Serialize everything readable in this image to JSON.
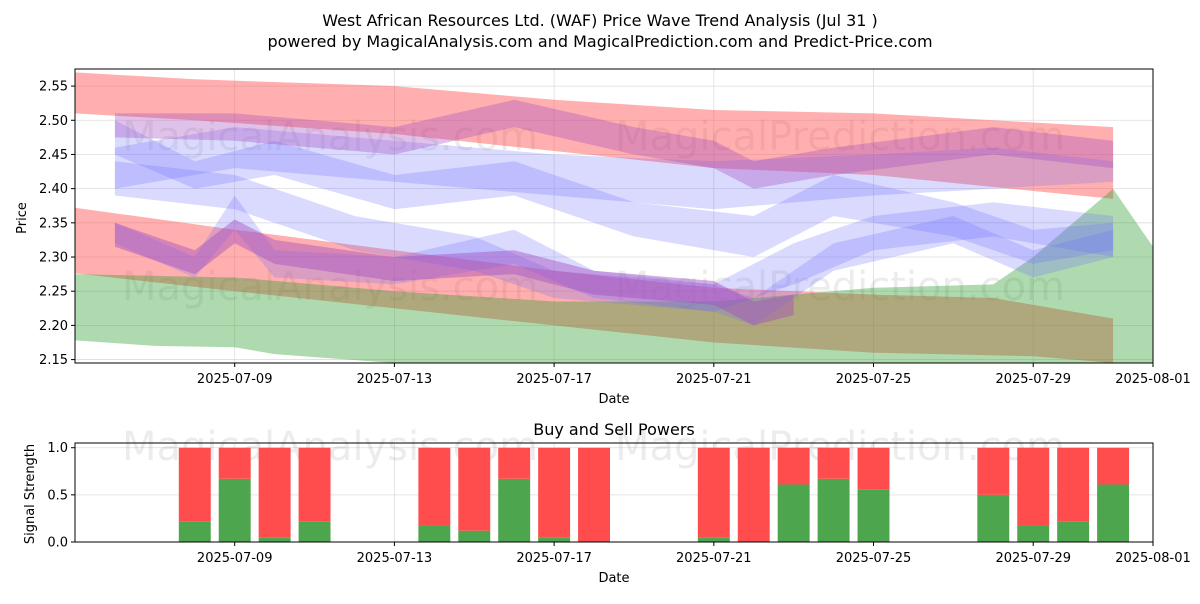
{
  "chart_data": [
    {
      "type": "area",
      "title": "West African Resources Ltd. (WAF) Price Wave Trend Analysis (Jul 31 )",
      "subtitle": "powered by MagicalAnalysis.com and MagicalPrediction.com and Predict-Price.com",
      "xlabel": "Date",
      "ylabel": "Price",
      "xlim": [
        "2025-07-05",
        "2025-08-01"
      ],
      "ylim": [
        2.145,
        2.575
      ],
      "x_ticks": [
        "2025-07-09",
        "2025-07-13",
        "2025-07-17",
        "2025-07-21",
        "2025-07-25",
        "2025-07-29",
        "2025-08-01"
      ],
      "y_ticks": [
        2.15,
        2.2,
        2.25,
        2.3,
        2.35,
        2.4,
        2.45,
        2.5,
        2.55
      ],
      "grid": true,
      "watermarks": [
        "MagicalAnalysis.com",
        "MagicalPrediction.com",
        "MagicalAnalysis.com",
        "MagicalPrediction.com"
      ],
      "colors": {
        "red": "#ff4d4d",
        "green": "#2e9e2e",
        "blue": "#6b6bff",
        "purple": "#a34dbf"
      },
      "bands": [
        {
          "color": "red",
          "opacity": 0.45,
          "upper": [
            [
              "2025-07-05",
              2.57
            ],
            [
              "2025-07-08",
              2.56
            ],
            [
              "2025-07-13",
              2.55
            ],
            [
              "2025-07-17",
              2.53
            ],
            [
              "2025-07-21",
              2.515
            ],
            [
              "2025-07-25",
              2.51
            ],
            [
              "2025-07-31",
              2.49
            ]
          ],
          "lower": [
            [
              "2025-07-05",
              2.51
            ],
            [
              "2025-07-08",
              2.5
            ],
            [
              "2025-07-13",
              2.48
            ],
            [
              "2025-07-17",
              2.455
            ],
            [
              "2025-07-21",
              2.43
            ],
            [
              "2025-07-25",
              2.42
            ],
            [
              "2025-07-31",
              2.385
            ]
          ]
        },
        {
          "color": "red",
          "opacity": 0.45,
          "upper": [
            [
              "2025-07-05",
              2.372
            ],
            [
              "2025-07-09",
              2.34
            ],
            [
              "2025-07-13",
              2.31
            ],
            [
              "2025-07-17",
              2.28
            ],
            [
              "2025-07-21",
              2.255
            ],
            [
              "2025-07-25",
              2.245
            ],
            [
              "2025-07-28",
              2.24
            ],
            [
              "2025-07-31",
              2.21
            ]
          ],
          "lower": [
            [
              "2025-07-05",
              2.276
            ],
            [
              "2025-07-09",
              2.25
            ],
            [
              "2025-07-13",
              2.225
            ],
            [
              "2025-07-17",
              2.2
            ],
            [
              "2025-07-21",
              2.175
            ],
            [
              "2025-07-25",
              2.16
            ],
            [
              "2025-07-29",
              2.155
            ],
            [
              "2025-07-31",
              2.145
            ]
          ]
        },
        {
          "color": "green",
          "opacity": 0.38,
          "upper": [
            [
              "2025-07-05",
              2.275
            ],
            [
              "2025-07-09",
              2.27
            ],
            [
              "2025-07-13",
              2.25
            ],
            [
              "2025-07-17",
              2.235
            ],
            [
              "2025-07-21",
              2.235
            ],
            [
              "2025-07-25",
              2.255
            ],
            [
              "2025-07-28",
              2.26
            ],
            [
              "2025-07-29",
              2.3
            ],
            [
              "2025-07-31",
              2.4
            ],
            [
              "2025-08-01",
              2.315
            ]
          ],
          "lower": [
            [
              "2025-07-05",
              2.178
            ],
            [
              "2025-07-07",
              2.17
            ],
            [
              "2025-07-09",
              2.168
            ],
            [
              "2025-07-10",
              2.158
            ],
            [
              "2025-07-13",
              2.145
            ],
            [
              "2025-07-20",
              2.145
            ],
            [
              "2025-07-29",
              2.145
            ],
            [
              "2025-08-01",
              2.145
            ]
          ]
        },
        {
          "color": "blue",
          "opacity": 0.25,
          "upper": [
            [
              "2025-07-06",
              2.46
            ],
            [
              "2025-07-09",
              2.49
            ],
            [
              "2025-07-13",
              2.47
            ],
            [
              "2025-07-17",
              2.45
            ],
            [
              "2025-07-21",
              2.44
            ],
            [
              "2025-07-25",
              2.45
            ],
            [
              "2025-07-28",
              2.46
            ],
            [
              "2025-07-31",
              2.44
            ]
          ],
          "lower": [
            [
              "2025-07-06",
              2.4
            ],
            [
              "2025-07-09",
              2.43
            ],
            [
              "2025-07-13",
              2.41
            ],
            [
              "2025-07-17",
              2.39
            ],
            [
              "2025-07-21",
              2.37
            ],
            [
              "2025-07-25",
              2.39
            ],
            [
              "2025-07-28",
              2.4
            ],
            [
              "2025-07-31",
              2.41
            ]
          ]
        },
        {
          "color": "blue",
          "opacity": 0.25,
          "upper": [
            [
              "2025-07-06",
              2.5
            ],
            [
              "2025-07-08",
              2.44
            ],
            [
              "2025-07-10",
              2.47
            ],
            [
              "2025-07-13",
              2.42
            ],
            [
              "2025-07-16",
              2.44
            ],
            [
              "2025-07-19",
              2.38
            ],
            [
              "2025-07-22",
              2.36
            ],
            [
              "2025-07-24",
              2.42
            ],
            [
              "2025-07-27",
              2.38
            ],
            [
              "2025-07-29",
              2.34
            ],
            [
              "2025-07-31",
              2.35
            ]
          ],
          "lower": [
            [
              "2025-07-06",
              2.45
            ],
            [
              "2025-07-08",
              2.4
            ],
            [
              "2025-07-10",
              2.42
            ],
            [
              "2025-07-13",
              2.37
            ],
            [
              "2025-07-16",
              2.39
            ],
            [
              "2025-07-19",
              2.33
            ],
            [
              "2025-07-22",
              2.3
            ],
            [
              "2025-07-24",
              2.36
            ],
            [
              "2025-07-27",
              2.33
            ],
            [
              "2025-07-29",
              2.29
            ],
            [
              "2025-07-31",
              2.31
            ]
          ]
        },
        {
          "color": "blue",
          "opacity": 0.25,
          "upper": [
            [
              "2025-07-06",
              2.44
            ],
            [
              "2025-07-09",
              2.42
            ],
            [
              "2025-07-12",
              2.36
            ],
            [
              "2025-07-15",
              2.33
            ],
            [
              "2025-07-17",
              2.28
            ],
            [
              "2025-07-21",
              2.26
            ],
            [
              "2025-07-23",
              2.32
            ],
            [
              "2025-07-25",
              2.36
            ],
            [
              "2025-07-28",
              2.38
            ],
            [
              "2025-07-31",
              2.36
            ]
          ],
          "lower": [
            [
              "2025-07-06",
              2.39
            ],
            [
              "2025-07-09",
              2.37
            ],
            [
              "2025-07-12",
              2.31
            ],
            [
              "2025-07-15",
              2.28
            ],
            [
              "2025-07-17",
              2.24
            ],
            [
              "2025-07-21",
              2.22
            ],
            [
              "2025-07-23",
              2.26
            ],
            [
              "2025-07-25",
              2.31
            ],
            [
              "2025-07-28",
              2.33
            ],
            [
              "2025-07-31",
              2.3
            ]
          ]
        },
        {
          "color": "blue",
          "opacity": 0.25,
          "upper": [
            [
              "2025-07-06",
              2.35
            ],
            [
              "2025-07-08",
              2.3
            ],
            [
              "2025-07-09",
              2.39
            ],
            [
              "2025-07-10",
              2.31
            ],
            [
              "2025-07-13",
              2.3
            ],
            [
              "2025-07-16",
              2.34
            ],
            [
              "2025-07-18",
              2.28
            ],
            [
              "2025-07-21",
              2.26
            ],
            [
              "2025-07-22",
              2.24
            ],
            [
              "2025-07-24",
              2.32
            ],
            [
              "2025-07-27",
              2.36
            ],
            [
              "2025-07-29",
              2.31
            ],
            [
              "2025-07-31",
              2.34
            ]
          ],
          "lower": [
            [
              "2025-07-06",
              2.32
            ],
            [
              "2025-07-08",
              2.27
            ],
            [
              "2025-07-09",
              2.34
            ],
            [
              "2025-07-10",
              2.27
            ],
            [
              "2025-07-13",
              2.26
            ],
            [
              "2025-07-16",
              2.29
            ],
            [
              "2025-07-18",
              2.24
            ],
            [
              "2025-07-21",
              2.22
            ],
            [
              "2025-07-22",
              2.2
            ],
            [
              "2025-07-24",
              2.28
            ],
            [
              "2025-07-27",
              2.32
            ],
            [
              "2025-07-29",
              2.27
            ],
            [
              "2025-07-31",
              2.3
            ]
          ]
        },
        {
          "color": "purple",
          "opacity": 0.35,
          "upper": [
            [
              "2025-07-06",
              2.51
            ],
            [
              "2025-07-09",
              2.51
            ],
            [
              "2025-07-13",
              2.49
            ],
            [
              "2025-07-16",
              2.53
            ],
            [
              "2025-07-19",
              2.49
            ],
            [
              "2025-07-21",
              2.47
            ],
            [
              "2025-07-22",
              2.44
            ],
            [
              "2025-07-24",
              2.46
            ],
            [
              "2025-07-28",
              2.49
            ],
            [
              "2025-07-31",
              2.47
            ]
          ],
          "lower": [
            [
              "2025-07-06",
              2.475
            ],
            [
              "2025-07-09",
              2.47
            ],
            [
              "2025-07-13",
              2.45
            ],
            [
              "2025-07-16",
              2.49
            ],
            [
              "2025-07-19",
              2.45
            ],
            [
              "2025-07-21",
              2.43
            ],
            [
              "2025-07-22",
              2.4
            ],
            [
              "2025-07-24",
              2.42
            ],
            [
              "2025-07-28",
              2.45
            ],
            [
              "2025-07-31",
              2.43
            ]
          ]
        },
        {
          "color": "purple",
          "opacity": 0.45,
          "upper": [
            [
              "2025-07-06",
              2.35
            ],
            [
              "2025-07-08",
              2.31
            ],
            [
              "2025-07-09",
              2.355
            ],
            [
              "2025-07-10",
              2.325
            ],
            [
              "2025-07-13",
              2.3
            ],
            [
              "2025-07-16",
              2.31
            ],
            [
              "2025-07-18",
              2.28
            ],
            [
              "2025-07-21",
              2.265
            ],
            [
              "2025-07-22",
              2.235
            ],
            [
              "2025-07-23",
              2.245
            ]
          ],
          "lower": [
            [
              "2025-07-06",
              2.315
            ],
            [
              "2025-07-08",
              2.275
            ],
            [
              "2025-07-09",
              2.32
            ],
            [
              "2025-07-10",
              2.29
            ],
            [
              "2025-07-13",
              2.265
            ],
            [
              "2025-07-16",
              2.275
            ],
            [
              "2025-07-18",
              2.245
            ],
            [
              "2025-07-21",
              2.23
            ],
            [
              "2025-07-22",
              2.2
            ],
            [
              "2025-07-23",
              2.215
            ]
          ]
        }
      ]
    },
    {
      "type": "bar",
      "title": "Buy and Sell Powers",
      "xlabel": "Date",
      "ylabel": "Signal Strength",
      "xlim": [
        "2025-07-05",
        "2025-08-01"
      ],
      "ylim": [
        0,
        1.05
      ],
      "x_ticks": [
        "2025-07-09",
        "2025-07-13",
        "2025-07-17",
        "2025-07-21",
        "2025-07-25",
        "2025-07-29",
        "2025-08-01"
      ],
      "y_ticks": [
        0.0,
        0.5,
        1.0
      ],
      "y_tick_labels": [
        "0.0",
        "0.5",
        "1.0"
      ],
      "grid": true,
      "colors": {
        "buy": "#4da64d",
        "sell": "#ff4d4d"
      },
      "dates": [
        "2025-07-08",
        "2025-07-09",
        "2025-07-10",
        "2025-07-11",
        "2025-07-14",
        "2025-07-15",
        "2025-07-16",
        "2025-07-17",
        "2025-07-18",
        "2025-07-21",
        "2025-07-22",
        "2025-07-23",
        "2025-07-24",
        "2025-07-25",
        "2025-07-28",
        "2025-07-29",
        "2025-07-30",
        "2025-07-31"
      ],
      "series": [
        {
          "name": "Buy",
          "values": [
            0.22,
            0.67,
            0.05,
            0.22,
            0.17,
            0.12,
            0.67,
            0.05,
            0.0,
            0.05,
            0.0,
            0.61,
            0.67,
            0.56,
            0.5,
            0.17,
            0.22,
            0.61
          ]
        },
        {
          "name": "Sell",
          "values": [
            0.78,
            0.33,
            0.95,
            0.78,
            0.83,
            0.88,
            0.33,
            0.95,
            1.0,
            0.95,
            1.0,
            0.39,
            0.33,
            0.44,
            0.5,
            0.83,
            0.78,
            0.39
          ]
        }
      ],
      "watermarks": [
        "MagicalAnalysis.com",
        "MagicalPrediction.com"
      ]
    }
  ]
}
